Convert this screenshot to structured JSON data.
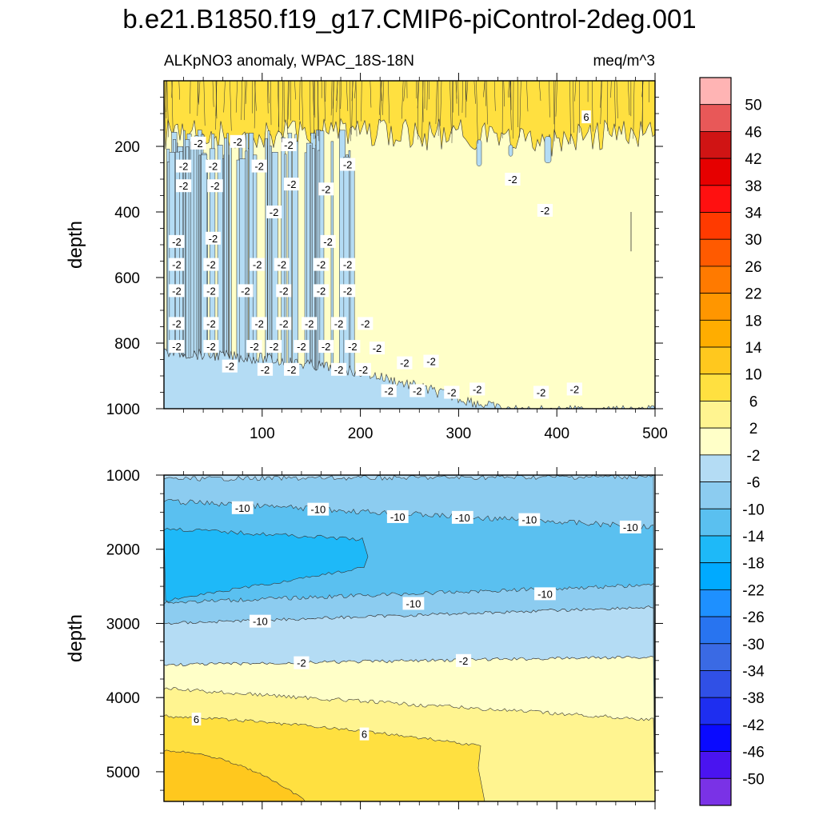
{
  "title": "b.e21.B1850.f19_g17.CMIP6-piControl-2deg.001",
  "subtitle_left": "ALKpNO3 anomaly, WPAC_18S-18N",
  "subtitle_right": "meq/m^3",
  "colorbar": {
    "labels": [
      "50",
      "46",
      "42",
      "38",
      "34",
      "30",
      "26",
      "22",
      "18",
      "14",
      "10",
      "6",
      "2",
      "-2",
      "-6",
      "-10",
      "-14",
      "-18",
      "-22",
      "-26",
      "-30",
      "-34",
      "-38",
      "-42",
      "-46",
      "-50"
    ],
    "colors": [
      "#ffb4b4",
      "#e85858",
      "#d01414",
      "#e60000",
      "#ff1010",
      "#ff3a00",
      "#ff5a00",
      "#ff7a00",
      "#ff9600",
      "#ffad00",
      "#ffc81e",
      "#ffe040",
      "#fff490",
      "#ffffc8",
      "#b4dcf4",
      "#8cccf0",
      "#5ac0f0",
      "#1eb9f8",
      "#00aaff",
      "#1e90ff",
      "#2874f0",
      "#3a6ae4",
      "#3050e6",
      "#1e2ef0",
      "#0a0aff",
      "#4a14f0",
      "#7a32e6"
    ]
  },
  "chart_data": [
    {
      "type": "contour",
      "panel": "upper",
      "xlabel": "",
      "ylabel": "depth",
      "xlim": [
        0,
        500
      ],
      "ylim": [
        1000,
        0
      ],
      "xticks": [
        "100",
        "200",
        "300",
        "400",
        "500"
      ],
      "xtick_values": [
        100,
        200,
        300,
        400,
        500
      ],
      "yticks": [
        "200",
        "400",
        "600",
        "800",
        "1000"
      ],
      "ytick_values": [
        200,
        400,
        600,
        800,
        1000
      ],
      "bands": [
        {
          "level": "2 to 6+",
          "color": "#ffe040",
          "depth_range": [
            0,
            150
          ]
        },
        {
          "level": "-2 to 2",
          "color": "#ffffc8",
          "depth_range": [
            150,
            1000
          ]
        },
        {
          "level": "-6 to -2",
          "color": "#b4dcf4",
          "depth_range": [
            200,
            1000
          ]
        }
      ],
      "boundary_deep_blue": [
        [
          0,
          820
        ],
        [
          100,
          840
        ],
        [
          150,
          860
        ],
        [
          200,
          880
        ],
        [
          250,
          920
        ],
        [
          300,
          960
        ],
        [
          350,
          1000
        ],
        [
          500,
          1000
        ]
      ],
      "contour_labels": [
        {
          "text": "6",
          "x": 430,
          "y": 110
        },
        {
          "text": "-2",
          "x": 35,
          "y": 190
        },
        {
          "text": "-2",
          "x": 75,
          "y": 185
        },
        {
          "text": "-2",
          "x": 127,
          "y": 195
        },
        {
          "text": "-2",
          "x": 20,
          "y": 260
        },
        {
          "text": "-2",
          "x": 50,
          "y": 260
        },
        {
          "text": "-2",
          "x": 97,
          "y": 260
        },
        {
          "text": "-2",
          "x": 187,
          "y": 255
        },
        {
          "text": "-2",
          "x": 20,
          "y": 320
        },
        {
          "text": "-2",
          "x": 52,
          "y": 320
        },
        {
          "text": "-2",
          "x": 130,
          "y": 315
        },
        {
          "text": "-2",
          "x": 165,
          "y": 330
        },
        {
          "text": "-2",
          "x": 355,
          "y": 300
        },
        {
          "text": "-2",
          "x": 112,
          "y": 400
        },
        {
          "text": "-2",
          "x": 388,
          "y": 395
        },
        {
          "text": "-2",
          "x": 13,
          "y": 490
        },
        {
          "text": "-2",
          "x": 50,
          "y": 480
        },
        {
          "text": "-2",
          "x": 167,
          "y": 490
        },
        {
          "text": "-2",
          "x": 13,
          "y": 560
        },
        {
          "text": "-2",
          "x": 48,
          "y": 560
        },
        {
          "text": "-2",
          "x": 95,
          "y": 560
        },
        {
          "text": "-2",
          "x": 120,
          "y": 560
        },
        {
          "text": "-2",
          "x": 160,
          "y": 560
        },
        {
          "text": "-2",
          "x": 187,
          "y": 560
        },
        {
          "text": "-2",
          "x": 13,
          "y": 640
        },
        {
          "text": "-2",
          "x": 48,
          "y": 640
        },
        {
          "text": "-2",
          "x": 83,
          "y": 640
        },
        {
          "text": "-2",
          "x": 122,
          "y": 640
        },
        {
          "text": "-2",
          "x": 160,
          "y": 640
        },
        {
          "text": "-2",
          "x": 187,
          "y": 640
        },
        {
          "text": "-2",
          "x": 13,
          "y": 740
        },
        {
          "text": "-2",
          "x": 48,
          "y": 740
        },
        {
          "text": "-2",
          "x": 97,
          "y": 740
        },
        {
          "text": "-2",
          "x": 122,
          "y": 740
        },
        {
          "text": "-2",
          "x": 148,
          "y": 740
        },
        {
          "text": "-2",
          "x": 178,
          "y": 740
        },
        {
          "text": "-2",
          "x": 205,
          "y": 740
        },
        {
          "text": "-2",
          "x": 13,
          "y": 810
        },
        {
          "text": "-2",
          "x": 48,
          "y": 810
        },
        {
          "text": "-2",
          "x": 92,
          "y": 810
        },
        {
          "text": "-2",
          "x": 112,
          "y": 810
        },
        {
          "text": "-2",
          "x": 140,
          "y": 810
        },
        {
          "text": "-2",
          "x": 165,
          "y": 810
        },
        {
          "text": "-2",
          "x": 192,
          "y": 810
        },
        {
          "text": "-2",
          "x": 217,
          "y": 815
        },
        {
          "text": "-2",
          "x": 67,
          "y": 870
        },
        {
          "text": "-2",
          "x": 103,
          "y": 880
        },
        {
          "text": "-2",
          "x": 130,
          "y": 880
        },
        {
          "text": "-2",
          "x": 178,
          "y": 880
        },
        {
          "text": "-2",
          "x": 203,
          "y": 880
        },
        {
          "text": "-2",
          "x": 245,
          "y": 860
        },
        {
          "text": "-2",
          "x": 272,
          "y": 855
        },
        {
          "text": "-2",
          "x": 229,
          "y": 945
        },
        {
          "text": "-2",
          "x": 258,
          "y": 945
        },
        {
          "text": "-2",
          "x": 293,
          "y": 950
        },
        {
          "text": "-2",
          "x": 319,
          "y": 940
        },
        {
          "text": "-2",
          "x": 384,
          "y": 950
        },
        {
          "text": "-2",
          "x": 418,
          "y": 940
        }
      ]
    },
    {
      "type": "contour",
      "panel": "lower",
      "xlabel": "",
      "ylabel": "depth",
      "xlim": [
        0,
        500
      ],
      "ylim": [
        5400,
        1000
      ],
      "xtick_values": [
        100,
        200,
        300,
        400,
        500
      ],
      "yticks": [
        "1000",
        "2000",
        "3000",
        "4000",
        "5000"
      ],
      "ytick_values": [
        1000,
        2000,
        3000,
        4000,
        5000
      ],
      "bands": [
        {
          "level": "-6 to -2",
          "color": "#b4dcf4"
        },
        {
          "level": "-10 to -6",
          "color": "#8cccf0"
        },
        {
          "level": "-14 to -10",
          "color": "#5ac0f0"
        },
        {
          "level": "-18 to -14",
          "color": "#1eb9f8"
        },
        {
          "level": "-2 to 2",
          "color": "#ffffc8"
        },
        {
          "level": "2 to 6",
          "color": "#fff490"
        },
        {
          "level": "6 to 10",
          "color": "#ffe040"
        },
        {
          "level": "10 to 14",
          "color": "#ffc81e"
        }
      ],
      "contour_labels": [
        {
          "text": "-10",
          "x": 80,
          "y": 1440
        },
        {
          "text": "-10",
          "x": 157,
          "y": 1460
        },
        {
          "text": "-10",
          "x": 238,
          "y": 1560
        },
        {
          "text": "-10",
          "x": 304,
          "y": 1570
        },
        {
          "text": "-10",
          "x": 372,
          "y": 1600
        },
        {
          "text": "-10",
          "x": 475,
          "y": 1700
        },
        {
          "text": "-10",
          "x": 254,
          "y": 2730
        },
        {
          "text": "-10",
          "x": 388,
          "y": 2600
        },
        {
          "text": "-10",
          "x": 98,
          "y": 2970
        },
        {
          "text": "-2",
          "x": 140,
          "y": 3530
        },
        {
          "text": "-2",
          "x": 305,
          "y": 3500
        },
        {
          "text": "6",
          "x": 33,
          "y": 4290
        },
        {
          "text": "6",
          "x": 204,
          "y": 4490
        }
      ]
    }
  ]
}
